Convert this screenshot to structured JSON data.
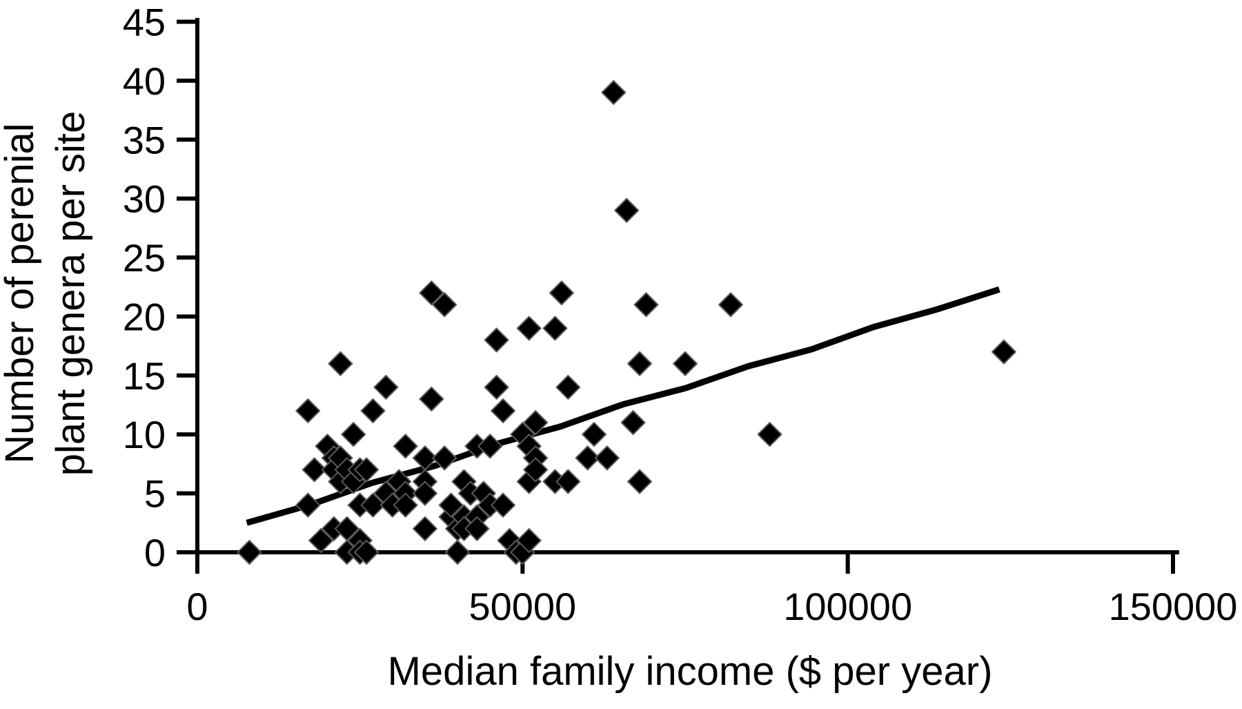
{
  "figure": {
    "background_color": "#ffffff",
    "ink_color": "#000000",
    "marker_edge_color": "#5a5a5a"
  },
  "chart_data": {
    "type": "scatter",
    "title": "",
    "xlabel": "Median family income ($ per year)",
    "ylabel_lines": [
      "Number of perenial",
      "plant genera per site"
    ],
    "xlim": [
      0,
      150000
    ],
    "ylim": [
      0,
      45
    ],
    "x_ticks": [
      0,
      50000,
      100000,
      150000
    ],
    "y_ticks": [
      0,
      5,
      10,
      15,
      20,
      25,
      30,
      35,
      40,
      45
    ],
    "grid": false,
    "legend": false,
    "marker": "diamond",
    "points": [
      [
        8000,
        0
      ],
      [
        17000,
        12
      ],
      [
        17000,
        4
      ],
      [
        18000,
        7
      ],
      [
        19000,
        1
      ],
      [
        20000,
        9
      ],
      [
        21000,
        8
      ],
      [
        21000,
        2
      ],
      [
        21000,
        7
      ],
      [
        22000,
        16
      ],
      [
        22000,
        8
      ],
      [
        22000,
        6
      ],
      [
        23000,
        7
      ],
      [
        23000,
        2
      ],
      [
        23000,
        0
      ],
      [
        24000,
        10
      ],
      [
        24000,
        6
      ],
      [
        25000,
        7
      ],
      [
        25000,
        4
      ],
      [
        25000,
        1
      ],
      [
        25000,
        0
      ],
      [
        26000,
        7
      ],
      [
        26000,
        0
      ],
      [
        27000,
        12
      ],
      [
        27000,
        4
      ],
      [
        29000,
        14
      ],
      [
        29000,
        5
      ],
      [
        30000,
        4
      ],
      [
        31000,
        6
      ],
      [
        32000,
        9
      ],
      [
        32000,
        5
      ],
      [
        32000,
        4
      ],
      [
        35000,
        8
      ],
      [
        35000,
        6
      ],
      [
        35000,
        5
      ],
      [
        35000,
        2
      ],
      [
        36000,
        22
      ],
      [
        36000,
        13
      ],
      [
        38000,
        21
      ],
      [
        38000,
        8
      ],
      [
        39000,
        3
      ],
      [
        39000,
        4
      ],
      [
        40000,
        2
      ],
      [
        40000,
        0
      ],
      [
        41000,
        6
      ],
      [
        41000,
        3
      ],
      [
        41000,
        2
      ],
      [
        42000,
        5
      ],
      [
        43000,
        9
      ],
      [
        43000,
        3
      ],
      [
        43000,
        2
      ],
      [
        44000,
        5
      ],
      [
        45000,
        9
      ],
      [
        45000,
        4
      ],
      [
        46000,
        18
      ],
      [
        46000,
        14
      ],
      [
        47000,
        12
      ],
      [
        47000,
        4
      ],
      [
        48000,
        1
      ],
      [
        49000,
        0
      ],
      [
        50000,
        10
      ],
      [
        50000,
        0
      ],
      [
        51000,
        19
      ],
      [
        51000,
        9
      ],
      [
        51000,
        6
      ],
      [
        51000,
        1
      ],
      [
        52000,
        11
      ],
      [
        52000,
        8
      ],
      [
        52000,
        7
      ],
      [
        55000,
        19
      ],
      [
        55000,
        6
      ],
      [
        56000,
        22
      ],
      [
        57000,
        14
      ],
      [
        57000,
        6
      ],
      [
        60000,
        8
      ],
      [
        61000,
        10
      ],
      [
        63000,
        8
      ],
      [
        64000,
        39
      ],
      [
        66000,
        29
      ],
      [
        67000,
        11
      ],
      [
        68000,
        16
      ],
      [
        68000,
        6
      ],
      [
        69000,
        21
      ],
      [
        75000,
        16
      ],
      [
        82000,
        21
      ],
      [
        88000,
        10
      ],
      [
        124000,
        17
      ]
    ],
    "trendline": {
      "x_start": 7600,
      "y_start": 2.5,
      "x_end": 123300,
      "y_end": 22.3
    }
  }
}
